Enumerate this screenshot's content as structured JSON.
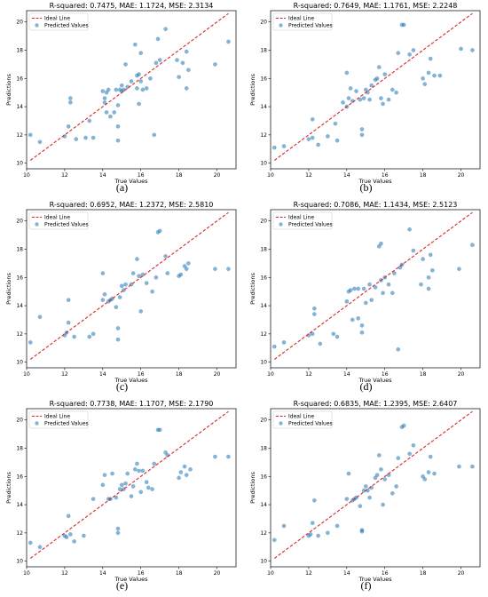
{
  "chart_data": [
    {
      "type": "scatter",
      "caption": "(a)",
      "title": "R-squared: 0.7475, MAE: 1.1724, MSE: 2.3134",
      "xlabel": "True Values",
      "ylabel": "Predictions",
      "xlim": [
        10,
        21
      ],
      "ylim": [
        9.6,
        20.8
      ],
      "xticks": [
        10,
        12,
        14,
        16,
        18,
        20
      ],
      "yticks": [
        10,
        12,
        14,
        16,
        18,
        20
      ],
      "legend": {
        "position": "top-left",
        "entries": [
          "Ideal Line",
          "Predicted Values"
        ]
      },
      "ideal_line": [
        [
          10.2,
          10.2
        ],
        [
          20.6,
          20.6
        ]
      ],
      "points": [
        [
          10.2,
          12.0
        ],
        [
          10.7,
          11.5
        ],
        [
          12.0,
          11.9
        ],
        [
          12.2,
          12.6
        ],
        [
          12.3,
          14.3
        ],
        [
          12.3,
          14.6
        ],
        [
          12.6,
          11.7
        ],
        [
          13.1,
          11.8
        ],
        [
          13.3,
          13.0
        ],
        [
          13.5,
          11.8
        ],
        [
          14.0,
          15.1
        ],
        [
          14.1,
          14.3
        ],
        [
          14.1,
          14.6
        ],
        [
          14.2,
          13.6
        ],
        [
          14.2,
          15.0
        ],
        [
          14.3,
          15.2
        ],
        [
          14.4,
          13.3
        ],
        [
          14.6,
          13.6
        ],
        [
          14.7,
          15.2
        ],
        [
          14.8,
          11.6
        ],
        [
          14.8,
          12.6
        ],
        [
          14.8,
          14.1
        ],
        [
          14.9,
          15.2
        ],
        [
          15.0,
          15.5
        ],
        [
          15.0,
          15.1
        ],
        [
          15.1,
          15.2
        ],
        [
          15.2,
          17.0
        ],
        [
          15.3,
          15.4
        ],
        [
          15.5,
          15.8
        ],
        [
          15.7,
          18.4
        ],
        [
          15.8,
          15.3
        ],
        [
          15.8,
          16.2
        ],
        [
          15.9,
          14.2
        ],
        [
          15.9,
          16.3
        ],
        [
          16.0,
          15.8
        ],
        [
          16.0,
          17.8
        ],
        [
          16.1,
          15.2
        ],
        [
          16.3,
          15.3
        ],
        [
          16.5,
          16.0
        ],
        [
          16.7,
          12.0
        ],
        [
          16.8,
          17.1
        ],
        [
          16.9,
          18.8
        ],
        [
          17.0,
          17.3
        ],
        [
          17.3,
          19.5
        ],
        [
          17.9,
          17.3
        ],
        [
          18.0,
          16.1
        ],
        [
          18.2,
          17.1
        ],
        [
          18.4,
          17.9
        ],
        [
          18.4,
          15.3
        ],
        [
          18.5,
          16.6
        ],
        [
          19.9,
          17.0
        ],
        [
          20.6,
          18.6
        ]
      ]
    },
    {
      "type": "scatter",
      "caption": "(b)",
      "title": "R-squared: 0.7649, MAE: 1.1761, MSE: 2.2248",
      "xlabel": "True Values",
      "ylabel": "Predictions",
      "xlim": [
        10,
        21
      ],
      "ylim": [
        9.6,
        20.8
      ],
      "xticks": [
        10,
        12,
        14,
        16,
        18,
        20
      ],
      "yticks": [
        10,
        12,
        14,
        16,
        18,
        20
      ],
      "legend": {
        "position": "top-left",
        "entries": [
          "Ideal Line",
          "Predicted Values"
        ]
      },
      "ideal_line": [
        [
          10.2,
          10.2
        ],
        [
          20.6,
          20.6
        ]
      ],
      "points": [
        [
          10.2,
          11.1
        ],
        [
          10.7,
          11.2
        ],
        [
          12.0,
          11.7
        ],
        [
          12.2,
          11.8
        ],
        [
          12.2,
          13.1
        ],
        [
          12.5,
          11.3
        ],
        [
          13.0,
          11.9
        ],
        [
          13.4,
          12.8
        ],
        [
          13.5,
          11.6
        ],
        [
          13.8,
          14.3
        ],
        [
          14.0,
          16.4
        ],
        [
          14.0,
          14.0
        ],
        [
          14.1,
          14.6
        ],
        [
          14.2,
          15.3
        ],
        [
          14.3,
          14.4
        ],
        [
          14.5,
          15.1
        ],
        [
          14.7,
          14.5
        ],
        [
          14.8,
          12.0
        ],
        [
          14.8,
          12.4
        ],
        [
          14.9,
          14.6
        ],
        [
          15.0,
          15.2
        ],
        [
          15.1,
          15.0
        ],
        [
          15.2,
          14.5
        ],
        [
          15.3,
          15.5
        ],
        [
          15.5,
          15.9
        ],
        [
          15.6,
          16.0
        ],
        [
          15.7,
          16.8
        ],
        [
          15.8,
          14.6
        ],
        [
          15.9,
          14.2
        ],
        [
          16.0,
          16.3
        ],
        [
          16.2,
          14.5
        ],
        [
          16.4,
          15.2
        ],
        [
          16.6,
          15.0
        ],
        [
          16.7,
          17.8
        ],
        [
          16.9,
          19.8
        ],
        [
          17.0,
          19.8
        ],
        [
          17.3,
          17.7
        ],
        [
          17.5,
          18.0
        ],
        [
          18.0,
          16.0
        ],
        [
          18.1,
          15.6
        ],
        [
          18.3,
          16.4
        ],
        [
          18.4,
          17.4
        ],
        [
          18.6,
          16.2
        ],
        [
          18.9,
          16.2
        ],
        [
          20.0,
          18.1
        ],
        [
          20.6,
          18.0
        ]
      ]
    },
    {
      "type": "scatter",
      "caption": "(c)",
      "title": "R-squared: 0.6952, MAE: 1.2372, MSE: 2.5810",
      "xlabel": "True Values",
      "ylabel": "Predictions",
      "xlim": [
        10,
        21
      ],
      "ylim": [
        9.6,
        20.8
      ],
      "xticks": [
        10,
        12,
        14,
        16,
        18,
        20
      ],
      "yticks": [
        10,
        12,
        14,
        16,
        18,
        20
      ],
      "legend": {
        "position": "top-left",
        "entries": [
          "Ideal Line",
          "Predicted Values"
        ]
      },
      "ideal_line": [
        [
          10.2,
          10.2
        ],
        [
          20.6,
          20.6
        ]
      ],
      "points": [
        [
          10.2,
          11.4
        ],
        [
          10.7,
          13.2
        ],
        [
          12.0,
          11.9
        ],
        [
          12.1,
          12.1
        ],
        [
          12.2,
          12.8
        ],
        [
          12.2,
          14.4
        ],
        [
          12.5,
          11.8
        ],
        [
          13.3,
          11.8
        ],
        [
          13.5,
          12.0
        ],
        [
          14.0,
          16.3
        ],
        [
          14.0,
          14.4
        ],
        [
          14.1,
          14.8
        ],
        [
          14.3,
          14.3
        ],
        [
          14.4,
          14.4
        ],
        [
          14.5,
          14.5
        ],
        [
          14.7,
          13.9
        ],
        [
          14.8,
          11.6
        ],
        [
          14.8,
          12.4
        ],
        [
          14.9,
          14.6
        ],
        [
          15.0,
          15.4
        ],
        [
          15.1,
          15.1
        ],
        [
          15.2,
          15.5
        ],
        [
          15.5,
          15.5
        ],
        [
          15.6,
          16.3
        ],
        [
          15.8,
          17.3
        ],
        [
          15.9,
          16.1
        ],
        [
          16.0,
          13.6
        ],
        [
          16.1,
          16.2
        ],
        [
          16.3,
          15.6
        ],
        [
          16.6,
          15.0
        ],
        [
          16.8,
          16.0
        ],
        [
          16.9,
          19.2
        ],
        [
          17.0,
          19.3
        ],
        [
          17.3,
          17.5
        ],
        [
          17.4,
          16.3
        ],
        [
          18.0,
          16.1
        ],
        [
          18.1,
          16.2
        ],
        [
          18.3,
          16.8
        ],
        [
          18.4,
          16.6
        ],
        [
          18.5,
          17.0
        ],
        [
          19.9,
          16.6
        ],
        [
          20.6,
          16.6
        ]
      ]
    },
    {
      "type": "scatter",
      "caption": "(d)",
      "title": "R-squared: 0.7086, MAE: 1.1434, MSE: 2.5123",
      "xlabel": "True Values",
      "ylabel": "Predictions",
      "xlim": [
        10,
        21
      ],
      "ylim": [
        9.6,
        20.8
      ],
      "xticks": [
        10,
        12,
        14,
        16,
        18,
        20
      ],
      "yticks": [
        10,
        12,
        14,
        16,
        18,
        20
      ],
      "legend": {
        "position": "top-left",
        "entries": [
          "Ideal Line",
          "Predicted Values"
        ]
      },
      "ideal_line": [
        [
          10.2,
          10.2
        ],
        [
          20.6,
          20.6
        ]
      ],
      "points": [
        [
          10.2,
          11.1
        ],
        [
          10.7,
          11.4
        ],
        [
          12.0,
          11.9
        ],
        [
          12.2,
          12.0
        ],
        [
          12.3,
          13.4
        ],
        [
          12.3,
          13.8
        ],
        [
          12.6,
          11.3
        ],
        [
          13.3,
          12.0
        ],
        [
          13.5,
          11.8
        ],
        [
          14.0,
          14.3
        ],
        [
          14.1,
          15.0
        ],
        [
          14.2,
          15.1
        ],
        [
          14.3,
          13.0
        ],
        [
          14.4,
          15.2
        ],
        [
          14.6,
          13.1
        ],
        [
          14.6,
          15.2
        ],
        [
          14.8,
          12.1
        ],
        [
          14.8,
          12.6
        ],
        [
          14.9,
          15.2
        ],
        [
          15.0,
          14.2
        ],
        [
          15.2,
          15.5
        ],
        [
          15.3,
          14.4
        ],
        [
          15.5,
          15.3
        ],
        [
          15.7,
          18.2
        ],
        [
          15.8,
          18.4
        ],
        [
          15.8,
          15.8
        ],
        [
          15.9,
          14.9
        ],
        [
          16.0,
          16.0
        ],
        [
          16.2,
          15.5
        ],
        [
          16.4,
          14.9
        ],
        [
          16.5,
          16.3
        ],
        [
          16.7,
          10.9
        ],
        [
          16.8,
          16.7
        ],
        [
          16.9,
          16.9
        ],
        [
          17.3,
          19.4
        ],
        [
          17.5,
          17.9
        ],
        [
          17.9,
          15.5
        ],
        [
          18.0,
          17.3
        ],
        [
          18.3,
          15.2
        ],
        [
          18.3,
          16.0
        ],
        [
          18.4,
          17.6
        ],
        [
          18.5,
          16.5
        ],
        [
          19.9,
          16.6
        ],
        [
          20.6,
          18.3
        ]
      ]
    },
    {
      "type": "scatter",
      "caption": "(e)",
      "title": "R-squared: 0.7738, MAE: 1.1707, MSE: 2.1790",
      "xlabel": "True Values",
      "ylabel": "Predictions",
      "xlim": [
        10,
        21
      ],
      "ylim": [
        9.6,
        20.8
      ],
      "xticks": [
        10,
        12,
        14,
        16,
        18,
        20
      ],
      "yticks": [
        10,
        12,
        14,
        16,
        18,
        20
      ],
      "legend": {
        "position": "top-left",
        "entries": [
          "Ideal Line",
          "Predicted Values"
        ]
      },
      "ideal_line": [
        [
          10.2,
          10.2
        ],
        [
          20.6,
          20.6
        ]
      ],
      "points": [
        [
          10.2,
          11.3
        ],
        [
          10.7,
          11.0
        ],
        [
          12.0,
          11.8
        ],
        [
          12.1,
          11.7
        ],
        [
          12.2,
          13.2
        ],
        [
          12.3,
          11.9
        ],
        [
          12.5,
          11.4
        ],
        [
          13.0,
          11.8
        ],
        [
          13.5,
          14.4
        ],
        [
          14.0,
          15.4
        ],
        [
          14.1,
          16.1
        ],
        [
          14.3,
          14.4
        ],
        [
          14.4,
          14.4
        ],
        [
          14.5,
          16.2
        ],
        [
          14.7,
          14.5
        ],
        [
          14.8,
          12.0
        ],
        [
          14.8,
          12.3
        ],
        [
          14.9,
          15.1
        ],
        [
          15.0,
          15.4
        ],
        [
          15.1,
          15.1
        ],
        [
          15.2,
          15.5
        ],
        [
          15.3,
          16.2
        ],
        [
          15.5,
          14.6
        ],
        [
          15.6,
          15.3
        ],
        [
          15.7,
          16.5
        ],
        [
          15.8,
          16.9
        ],
        [
          15.9,
          16.4
        ],
        [
          16.0,
          14.9
        ],
        [
          16.1,
          16.4
        ],
        [
          16.3,
          15.6
        ],
        [
          16.4,
          15.2
        ],
        [
          16.6,
          15.1
        ],
        [
          16.7,
          16.9
        ],
        [
          16.9,
          19.3
        ],
        [
          17.0,
          19.3
        ],
        [
          17.3,
          17.7
        ],
        [
          17.4,
          17.5
        ],
        [
          18.0,
          15.9
        ],
        [
          18.1,
          16.3
        ],
        [
          18.3,
          16.7
        ],
        [
          18.4,
          16.1
        ],
        [
          18.6,
          16.5
        ],
        [
          19.9,
          17.4
        ],
        [
          20.6,
          17.4
        ]
      ]
    },
    {
      "type": "scatter",
      "caption": "(f)",
      "title": "R-squared: 0.6835, MAE: 1.2395, MSE: 2.6407",
      "xlabel": "True Values",
      "ylabel": "Predictions",
      "xlim": [
        10,
        21
      ],
      "ylim": [
        9.6,
        20.8
      ],
      "xticks": [
        10,
        12,
        14,
        16,
        18,
        20
      ],
      "yticks": [
        10,
        12,
        14,
        16,
        18,
        20
      ],
      "legend": {
        "position": "top-left",
        "entries": [
          "Ideal Line",
          "Predicted Values"
        ]
      },
      "ideal_line": [
        [
          10.2,
          10.2
        ],
        [
          20.6,
          20.6
        ]
      ],
      "points": [
        [
          10.2,
          11.5
        ],
        [
          10.7,
          12.5
        ],
        [
          12.0,
          11.8
        ],
        [
          12.1,
          11.9
        ],
        [
          12.2,
          12.7
        ],
        [
          12.3,
          14.3
        ],
        [
          12.5,
          11.8
        ],
        [
          13.0,
          12.0
        ],
        [
          13.5,
          12.5
        ],
        [
          14.0,
          14.4
        ],
        [
          14.1,
          16.2
        ],
        [
          14.3,
          14.3
        ],
        [
          14.4,
          14.4
        ],
        [
          14.5,
          14.5
        ],
        [
          14.7,
          13.9
        ],
        [
          14.8,
          12.1
        ],
        [
          14.8,
          12.2
        ],
        [
          14.9,
          15.0
        ],
        [
          15.0,
          15.3
        ],
        [
          15.1,
          15.0
        ],
        [
          15.2,
          14.5
        ],
        [
          15.3,
          15.2
        ],
        [
          15.5,
          15.9
        ],
        [
          15.6,
          16.1
        ],
        [
          15.7,
          17.5
        ],
        [
          15.8,
          16.5
        ],
        [
          15.9,
          14.0
        ],
        [
          16.0,
          15.8
        ],
        [
          16.2,
          16.1
        ],
        [
          16.4,
          14.8
        ],
        [
          16.6,
          15.3
        ],
        [
          16.7,
          17.3
        ],
        [
          16.9,
          19.5
        ],
        [
          17.0,
          19.6
        ],
        [
          17.3,
          17.6
        ],
        [
          17.5,
          18.2
        ],
        [
          18.0,
          16.0
        ],
        [
          18.1,
          15.8
        ],
        [
          18.3,
          16.3
        ],
        [
          18.4,
          17.4
        ],
        [
          18.6,
          16.2
        ],
        [
          19.9,
          16.7
        ],
        [
          20.6,
          16.7
        ]
      ]
    }
  ]
}
